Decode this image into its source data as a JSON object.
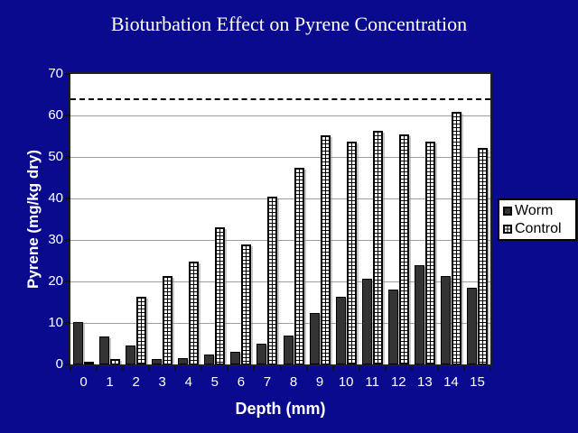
{
  "slide": {
    "background_color": "#0a0a8f"
  },
  "chart_data": {
    "type": "bar",
    "title": "Bioturbation Effect on Pyrene Concentration",
    "xlabel": "Depth (mm)",
    "ylabel": "Pyrene (mg/kg dry)",
    "categories": [
      "0",
      "1",
      "2",
      "3",
      "4",
      "5",
      "6",
      "7",
      "8",
      "9",
      "10",
      "11",
      "12",
      "13",
      "14",
      "15"
    ],
    "series": [
      {
        "name": "Worm",
        "style": "solid-dark",
        "color": "#333333",
        "values": [
          10.2,
          6.7,
          4.6,
          1.2,
          1.6,
          2.3,
          3.1,
          5.0,
          7.0,
          12.3,
          16.4,
          20.7,
          18.0,
          24.0,
          21.2,
          18.4
        ]
      },
      {
        "name": "Control",
        "style": "grid-hatch",
        "color": "#ffffff",
        "values": [
          0.6,
          1.2,
          16.4,
          21.4,
          24.8,
          33.0,
          29.0,
          40.5,
          47.3,
          55.2,
          53.8,
          56.2,
          55.5,
          53.8,
          60.8,
          52.2
        ]
      }
    ],
    "ylim": [
      0,
      70
    ],
    "yticks": [
      0,
      10,
      20,
      30,
      40,
      50,
      60,
      70
    ],
    "reference_line": {
      "value": 64,
      "style": "dashed",
      "color": "#000000"
    },
    "grid": true,
    "gridline_color": "#9e9e9e",
    "legend_position": "right",
    "plot_background": "#ffffff"
  }
}
